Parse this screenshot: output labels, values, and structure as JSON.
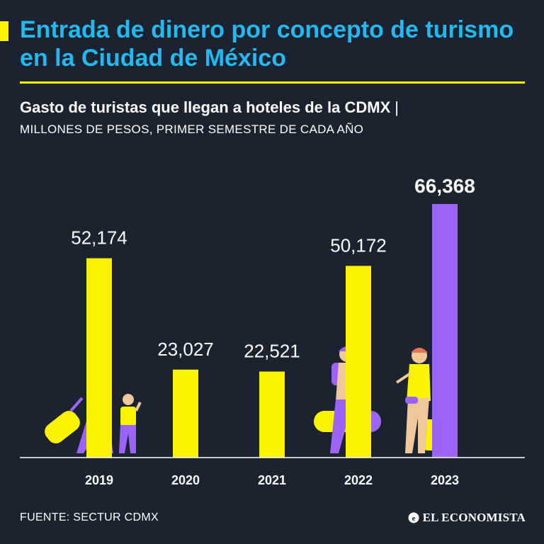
{
  "header": {
    "title": "Entrada de dinero por concepto de turismo en la Ciudad de México",
    "subtitle": "Gasto de turistas que llegan a hoteles de la CDMX",
    "subtitle_separator": "|",
    "unit_label": "MILLONES DE PESOS, PRIMER SEMESTRE DE CADA AÑO"
  },
  "chart_data": {
    "type": "bar",
    "title": "Gasto de turistas que llegan a hoteles de la CDMX",
    "ylabel": "Millones de pesos",
    "xlabel": "",
    "categories": [
      "2019",
      "2020",
      "2021",
      "2022",
      "2023"
    ],
    "values": [
      52174,
      23027,
      22521,
      50172,
      66368
    ],
    "value_labels": [
      "52,174",
      "23,027",
      "22,521",
      "50,172",
      "66,368"
    ],
    "highlight_index": 4,
    "colors": {
      "default": "#fbf200",
      "highlight": "#9c63f7"
    },
    "ylim": [
      0,
      66368
    ],
    "grid": false
  },
  "footer": {
    "source": "FUENTE: SECTUR CDMX",
    "brand": "EL ECONOMISTA"
  },
  "colors": {
    "background": "#1b2330",
    "title": "#23b8f0",
    "accent": "#fbf200",
    "text": "#ffffff"
  }
}
